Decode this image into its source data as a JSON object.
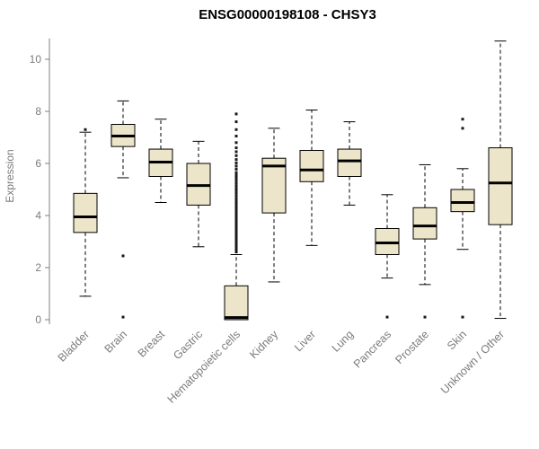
{
  "chart_data": {
    "type": "boxplot",
    "title": "ENSG00000198108 - CHSY3",
    "ylabel": "Expression",
    "xlabel": "",
    "ylim": [
      0,
      10.8
    ],
    "yticks": [
      0,
      2,
      4,
      6,
      8,
      10
    ],
    "grid": false,
    "legend": false,
    "categories": [
      "Bladder",
      "Brain",
      "Breast",
      "Gastric",
      "Hematopoietic cells",
      "Kidney",
      "Liver",
      "Lung",
      "Pancreas",
      "Prostate",
      "Skin",
      "Unknown / Other"
    ],
    "series": [
      {
        "category": "Bladder",
        "low": 0.9,
        "q1": 3.35,
        "median": 3.95,
        "q3": 4.85,
        "high": 7.2,
        "outliers": [
          7.3
        ]
      },
      {
        "category": "Brain",
        "low": 5.45,
        "q1": 6.65,
        "median": 7.05,
        "q3": 7.5,
        "high": 8.4,
        "outliers": [
          2.45,
          0.1
        ]
      },
      {
        "category": "Breast",
        "low": 4.5,
        "q1": 5.5,
        "median": 6.05,
        "q3": 6.55,
        "high": 7.7,
        "outliers": []
      },
      {
        "category": "Gastric",
        "low": 2.8,
        "q1": 4.4,
        "median": 5.15,
        "q3": 6.0,
        "high": 6.85,
        "outliers": []
      },
      {
        "category": "Hematopoietic cells",
        "low": 0.0,
        "q1": 0.0,
        "median": 0.08,
        "q3": 1.3,
        "high": 2.5,
        "outliers": [
          2.6,
          2.65,
          2.7,
          2.78,
          2.85,
          2.92,
          3.0,
          3.08,
          3.15,
          3.22,
          3.3,
          3.38,
          3.45,
          3.52,
          3.6,
          3.68,
          3.75,
          3.82,
          3.9,
          3.98,
          4.05,
          4.12,
          4.2,
          4.28,
          4.35,
          4.45,
          4.55,
          4.65,
          4.75,
          4.85,
          4.95,
          5.05,
          5.15,
          5.25,
          5.35,
          5.45,
          5.55,
          5.65,
          5.78,
          5.9,
          6.02,
          6.15,
          6.3,
          6.45,
          6.6,
          6.8,
          7.05,
          7.3,
          7.6,
          7.9
        ]
      },
      {
        "category": "Kidney",
        "low": 1.45,
        "q1": 4.1,
        "median": 5.9,
        "q3": 6.2,
        "high": 7.35,
        "outliers": []
      },
      {
        "category": "Liver",
        "low": 2.85,
        "q1": 5.3,
        "median": 5.75,
        "q3": 6.5,
        "high": 8.05,
        "outliers": []
      },
      {
        "category": "Lung",
        "low": 4.4,
        "q1": 5.5,
        "median": 6.1,
        "q3": 6.55,
        "high": 7.6,
        "outliers": []
      },
      {
        "category": "Pancreas",
        "low": 1.6,
        "q1": 2.5,
        "median": 2.95,
        "q3": 3.5,
        "high": 4.8,
        "outliers": [
          0.1
        ]
      },
      {
        "category": "Prostate",
        "low": 1.35,
        "q1": 3.1,
        "median": 3.6,
        "q3": 4.3,
        "high": 5.95,
        "outliers": [
          0.1
        ]
      },
      {
        "category": "Skin",
        "low": 2.7,
        "q1": 4.15,
        "median": 4.5,
        "q3": 5.0,
        "high": 5.8,
        "outliers": [
          7.7,
          7.35,
          0.1
        ]
      },
      {
        "category": "Unknown / Other",
        "low": 0.05,
        "q1": 3.65,
        "median": 5.25,
        "q3": 6.6,
        "high": 10.7,
        "outliers": []
      }
    ],
    "colors": {
      "title": "#000000",
      "axis": "#7f7f7f",
      "tick_label": "#7c7c7c",
      "category_label": "#7c7c7c",
      "box_fill": "#EDE5C9",
      "box_stroke": "#000000",
      "median": "#000000",
      "whisker": "#000000",
      "outlier": "#1a1a1a",
      "background": "#ffffff"
    }
  }
}
